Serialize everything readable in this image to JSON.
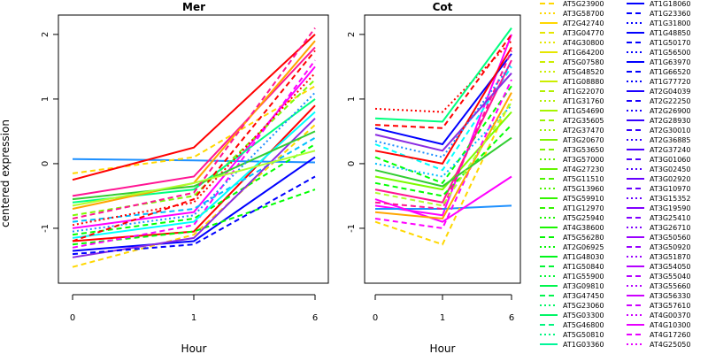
{
  "chart_data": {
    "type": "line",
    "ylabel": "centered expression",
    "xlabel": "Hour",
    "x_ticks": [
      "0",
      "1",
      "6"
    ],
    "y_ticks": [
      "-1",
      "0",
      "1",
      "2"
    ],
    "ylim": [
      -1.85,
      2.3
    ],
    "grid": false,
    "legend_position": "right",
    "panels": [
      {
        "title": "Mer",
        "series": [
          {
            "values": [
              -1.2,
              -1.05,
              0.9
            ],
            "color": "#ff0000",
            "dash": "solid"
          },
          {
            "values": [
              0.07,
              0.05,
              0.02
            ],
            "color": "#1e90ff",
            "dash": "solid"
          },
          {
            "values": [
              -0.15,
              0.1,
              1.2
            ],
            "color": "#ffd700",
            "dash": "dashed"
          },
          {
            "values": [
              -1.35,
              -1.2,
              0.1
            ],
            "color": "#0000ff",
            "dash": "solid"
          },
          {
            "values": [
              -1.6,
              -1.1,
              0.6
            ],
            "color": "#ffd700",
            "dash": "dashed"
          },
          {
            "values": [
              -1.0,
              -0.75,
              1.5
            ],
            "color": "#ff00ff",
            "dash": "solid"
          },
          {
            "values": [
              -0.5,
              -0.2,
              1.8
            ],
            "color": "#ff1493",
            "dash": "solid"
          },
          {
            "values": [
              -0.25,
              0.25,
              2.0
            ],
            "color": "#ff0000",
            "dash": "solid"
          },
          {
            "values": [
              -0.8,
              -0.5,
              1.3
            ],
            "color": "#7cfc00",
            "dash": "dashed"
          },
          {
            "values": [
              -0.6,
              -0.4,
              1.0
            ],
            "color": "#00ff7f",
            "dash": "solid"
          },
          {
            "values": [
              -0.9,
              -0.7,
              0.4
            ],
            "color": "#00bfff",
            "dash": "dashed"
          },
          {
            "values": [
              -1.1,
              -0.85,
              0.3
            ],
            "color": "#00ff00",
            "dash": "dashed"
          },
          {
            "values": [
              -1.25,
              -1.05,
              -0.4
            ],
            "color": "#00ff00",
            "dash": "dashed"
          },
          {
            "values": [
              -1.45,
              -1.15,
              0.7
            ],
            "color": "#8a2be2",
            "dash": "solid"
          },
          {
            "values": [
              -1.3,
              -0.95,
              1.6
            ],
            "color": "#ff00ff",
            "dash": "dashed"
          },
          {
            "values": [
              -0.7,
              -0.3,
              1.9
            ],
            "color": "#ffa500",
            "dash": "solid"
          },
          {
            "values": [
              -0.95,
              -0.6,
              1.4
            ],
            "color": "#ff0000",
            "dash": "dotted"
          },
          {
            "values": [
              -1.15,
              -0.9,
              0.8
            ],
            "color": "#00ffff",
            "dash": "solid"
          },
          {
            "values": [
              -0.55,
              -0.35,
              0.5
            ],
            "color": "#32cd32",
            "dash": "solid"
          },
          {
            "values": [
              -1.05,
              -0.8,
              1.1
            ],
            "color": "#1e90ff",
            "dash": "dotted"
          },
          {
            "values": [
              -1.4,
              -1.25,
              -0.2
            ],
            "color": "#0000ff",
            "dash": "dashed"
          },
          {
            "values": [
              -0.85,
              -0.45,
              2.1
            ],
            "color": "#ff1493",
            "dash": "dashed"
          },
          {
            "values": [
              -1.2,
              -0.55,
              1.75
            ],
            "color": "#ff0000",
            "dash": "dashed"
          },
          {
            "values": [
              -0.65,
              -0.3,
              0.2
            ],
            "color": "#adff2f",
            "dash": "solid"
          }
        ]
      },
      {
        "title": "Cot",
        "series": [
          {
            "values": [
              0.85,
              0.8,
              1.9
            ],
            "color": "#ff0000",
            "dash": "dotted"
          },
          {
            "values": [
              -0.65,
              -0.8,
              2.0
            ],
            "color": "#ff00ff",
            "dash": "solid"
          },
          {
            "values": [
              -0.7,
              -0.7,
              -0.65
            ],
            "color": "#1e90ff",
            "dash": "solid"
          },
          {
            "values": [
              -0.9,
              -1.25,
              1.0
            ],
            "color": "#ffd700",
            "dash": "dashed"
          },
          {
            "values": [
              0.55,
              0.3,
              1.7
            ],
            "color": "#0000ff",
            "dash": "solid"
          },
          {
            "values": [
              0.3,
              -0.1,
              1.5
            ],
            "color": "#00ffff",
            "dash": "dashed"
          },
          {
            "values": [
              0.1,
              -0.3,
              1.2
            ],
            "color": "#00ff00",
            "dash": "dashed"
          },
          {
            "values": [
              -0.2,
              -0.4,
              0.8
            ],
            "color": "#7cfc00",
            "dash": "solid"
          },
          {
            "values": [
              -0.4,
              -0.6,
              1.6
            ],
            "color": "#ff1493",
            "dash": "solid"
          },
          {
            "values": [
              0.7,
              0.65,
              2.1
            ],
            "color": "#00ff7f",
            "dash": "solid"
          },
          {
            "values": [
              -0.85,
              -1.0,
              1.3
            ],
            "color": "#ff00ff",
            "dash": "dashed"
          },
          {
            "values": [
              0.0,
              -0.2,
              0.9
            ],
            "color": "#00bfff",
            "dash": "dotted"
          },
          {
            "values": [
              -0.55,
              -0.9,
              -0.2
            ],
            "color": "#ff00ff",
            "dash": "solid"
          },
          {
            "values": [
              0.45,
              0.2,
              1.4
            ],
            "color": "#8a2be2",
            "dash": "solid"
          },
          {
            "values": [
              -0.3,
              -0.5,
              0.6
            ],
            "color": "#00ff00",
            "dash": "dashed"
          },
          {
            "values": [
              0.2,
              0.0,
              1.8
            ],
            "color": "#ff0000",
            "dash": "solid"
          },
          {
            "values": [
              -0.75,
              -0.85,
              1.1
            ],
            "color": "#ffa500",
            "dash": "solid"
          },
          {
            "values": [
              0.6,
              0.55,
              2.0
            ],
            "color": "#ff0000",
            "dash": "dashed"
          },
          {
            "values": [
              -0.1,
              -0.35,
              0.4
            ],
            "color": "#32cd32",
            "dash": "solid"
          },
          {
            "values": [
              -0.6,
              -0.7,
              1.75
            ],
            "color": "#ff1493",
            "dash": "dashed"
          },
          {
            "values": [
              0.35,
              0.1,
              1.55
            ],
            "color": "#1e90ff",
            "dash": "dotted"
          },
          {
            "values": [
              -0.45,
              -0.65,
              0.95
            ],
            "color": "#adff2f",
            "dash": "dashed"
          }
        ]
      }
    ],
    "legend_columns": [
      [
        {
          "label": "AT5G23900",
          "color": "#ffd700",
          "dash": "dashed"
        },
        {
          "label": "AT3G58700",
          "color": "#ffd700",
          "dash": "dotted"
        },
        {
          "label": "AT2G42740",
          "color": "#ffd700",
          "dash": "solid"
        },
        {
          "label": "AT3G04770",
          "color": "#e6e600",
          "dash": "dashed"
        },
        {
          "label": "AT4G30800",
          "color": "#e6e600",
          "dash": "dotted"
        },
        {
          "label": "AT1G64200",
          "color": "#e6e600",
          "dash": "solid"
        },
        {
          "label": "AT5G07580",
          "color": "#ccee00",
          "dash": "dashed"
        },
        {
          "label": "AT5G48520",
          "color": "#ccee00",
          "dash": "dotted"
        },
        {
          "label": "AT1G08880",
          "color": "#ccee00",
          "dash": "solid"
        },
        {
          "label": "AT1G22070",
          "color": "#b3f000",
          "dash": "dashed"
        },
        {
          "label": "AT1G31760",
          "color": "#b3f000",
          "dash": "dotted"
        },
        {
          "label": "AT1G54690",
          "color": "#a6f500",
          "dash": "solid"
        },
        {
          "label": "AT2G35605",
          "color": "#99f500",
          "dash": "dashed"
        },
        {
          "label": "AT2G37470",
          "color": "#99f500",
          "dash": "dotted"
        },
        {
          "label": "AT3G20670",
          "color": "#80f500",
          "dash": "solid"
        },
        {
          "label": "AT3G53650",
          "color": "#80f500",
          "dash": "dashed"
        },
        {
          "label": "AT3G57000",
          "color": "#66f500",
          "dash": "dotted"
        },
        {
          "label": "AT4G27230",
          "color": "#66f500",
          "dash": "solid"
        },
        {
          "label": "AT5G11510",
          "color": "#4df500",
          "dash": "dashed"
        },
        {
          "label": "AT5G13960",
          "color": "#4df500",
          "dash": "dotted"
        },
        {
          "label": "AT5G59910",
          "color": "#33f500",
          "dash": "solid"
        },
        {
          "label": "AT1G12970",
          "color": "#33f500",
          "dash": "dashed"
        },
        {
          "label": "AT5G25940",
          "color": "#1af500",
          "dash": "dotted"
        },
        {
          "label": "AT4G38600",
          "color": "#1af500",
          "dash": "solid"
        },
        {
          "label": "AT5G56280",
          "color": "#00f500",
          "dash": "dashed"
        },
        {
          "label": "AT2G06925",
          "color": "#00f500",
          "dash": "dotted"
        },
        {
          "label": "AT1G48030",
          "color": "#00f51a",
          "dash": "solid"
        },
        {
          "label": "AT1G50840",
          "color": "#00f533",
          "dash": "dashed"
        },
        {
          "label": "AT1G55900",
          "color": "#00f533",
          "dash": "dotted"
        },
        {
          "label": "AT3G09810",
          "color": "#00f54d",
          "dash": "solid"
        },
        {
          "label": "AT3G47450",
          "color": "#00f54d",
          "dash": "dashed"
        },
        {
          "label": "AT5G23060",
          "color": "#00f566",
          "dash": "dotted"
        },
        {
          "label": "AT5G03300",
          "color": "#00f566",
          "dash": "solid"
        },
        {
          "label": "AT5G46800",
          "color": "#00f580",
          "dash": "dashed"
        },
        {
          "label": "AT5G50810",
          "color": "#00f580",
          "dash": "dotted"
        },
        {
          "label": "AT1G03360",
          "color": "#00f599",
          "dash": "solid"
        }
      ],
      [
        {
          "label": "AT1G18060",
          "color": "#0000ff",
          "dash": "solid"
        },
        {
          "label": "AT1G23360",
          "color": "#0000ff",
          "dash": "dashed"
        },
        {
          "label": "AT1G31800",
          "color": "#0000ff",
          "dash": "dotted"
        },
        {
          "label": "AT1G48850",
          "color": "#0000ff",
          "dash": "solid"
        },
        {
          "label": "AT1G50170",
          "color": "#0000ff",
          "dash": "dashed"
        },
        {
          "label": "AT1G56500",
          "color": "#0000ff",
          "dash": "dotted"
        },
        {
          "label": "AT1G63970",
          "color": "#0000ff",
          "dash": "solid"
        },
        {
          "label": "AT1G66520",
          "color": "#0000ff",
          "dash": "dashed"
        },
        {
          "label": "AT1G77720",
          "color": "#0000ff",
          "dash": "dotted"
        },
        {
          "label": "AT2G04039",
          "color": "#1a00ff",
          "dash": "solid"
        },
        {
          "label": "AT2G22250",
          "color": "#1a00ff",
          "dash": "dashed"
        },
        {
          "label": "AT2G26900",
          "color": "#1a00ff",
          "dash": "dotted"
        },
        {
          "label": "AT2G28930",
          "color": "#3300ff",
          "dash": "solid"
        },
        {
          "label": "AT2G30010",
          "color": "#3300ff",
          "dash": "dashed"
        },
        {
          "label": "AT2G36885",
          "color": "#3300ff",
          "dash": "dotted"
        },
        {
          "label": "AT2G37240",
          "color": "#4d00ff",
          "dash": "solid"
        },
        {
          "label": "AT3G01060",
          "color": "#4d00ff",
          "dash": "dashed"
        },
        {
          "label": "AT3G02450",
          "color": "#4d00ff",
          "dash": "dotted"
        },
        {
          "label": "AT3G02920",
          "color": "#6600ff",
          "dash": "solid"
        },
        {
          "label": "AT3G10970",
          "color": "#6600ff",
          "dash": "dashed"
        },
        {
          "label": "AT3G15352",
          "color": "#6600ff",
          "dash": "dotted"
        },
        {
          "label": "AT3G19590",
          "color": "#8000ff",
          "dash": "solid"
        },
        {
          "label": "AT3G25410",
          "color": "#8000ff",
          "dash": "dashed"
        },
        {
          "label": "AT3G26710",
          "color": "#8000ff",
          "dash": "dotted"
        },
        {
          "label": "AT3G50560",
          "color": "#9900ff",
          "dash": "solid"
        },
        {
          "label": "AT3G50920",
          "color": "#9900ff",
          "dash": "dashed"
        },
        {
          "label": "AT3G51870",
          "color": "#9900ff",
          "dash": "dotted"
        },
        {
          "label": "AT3G54050",
          "color": "#b300ff",
          "dash": "solid"
        },
        {
          "label": "AT3G55040",
          "color": "#b300ff",
          "dash": "dashed"
        },
        {
          "label": "AT3G55660",
          "color": "#b300ff",
          "dash": "dotted"
        },
        {
          "label": "AT3G56330",
          "color": "#cc00ff",
          "dash": "solid"
        },
        {
          "label": "AT3G57610",
          "color": "#cc00ff",
          "dash": "dashed"
        },
        {
          "label": "AT4G00370",
          "color": "#cc00ff",
          "dash": "dotted"
        },
        {
          "label": "AT4G10300",
          "color": "#e600ff",
          "dash": "solid"
        },
        {
          "label": "AT4G17260",
          "color": "#e600ff",
          "dash": "dashed"
        },
        {
          "label": "AT4G25050",
          "color": "#e600ff",
          "dash": "dotted"
        }
      ]
    ]
  }
}
